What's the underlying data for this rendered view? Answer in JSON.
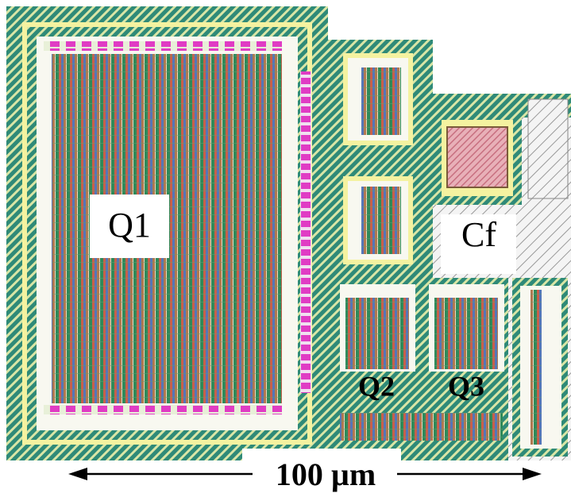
{
  "labels": [
    "Q1",
    "Cf",
    "Q2",
    "Q3"
  ],
  "scale_bar": "100 µm"
}
